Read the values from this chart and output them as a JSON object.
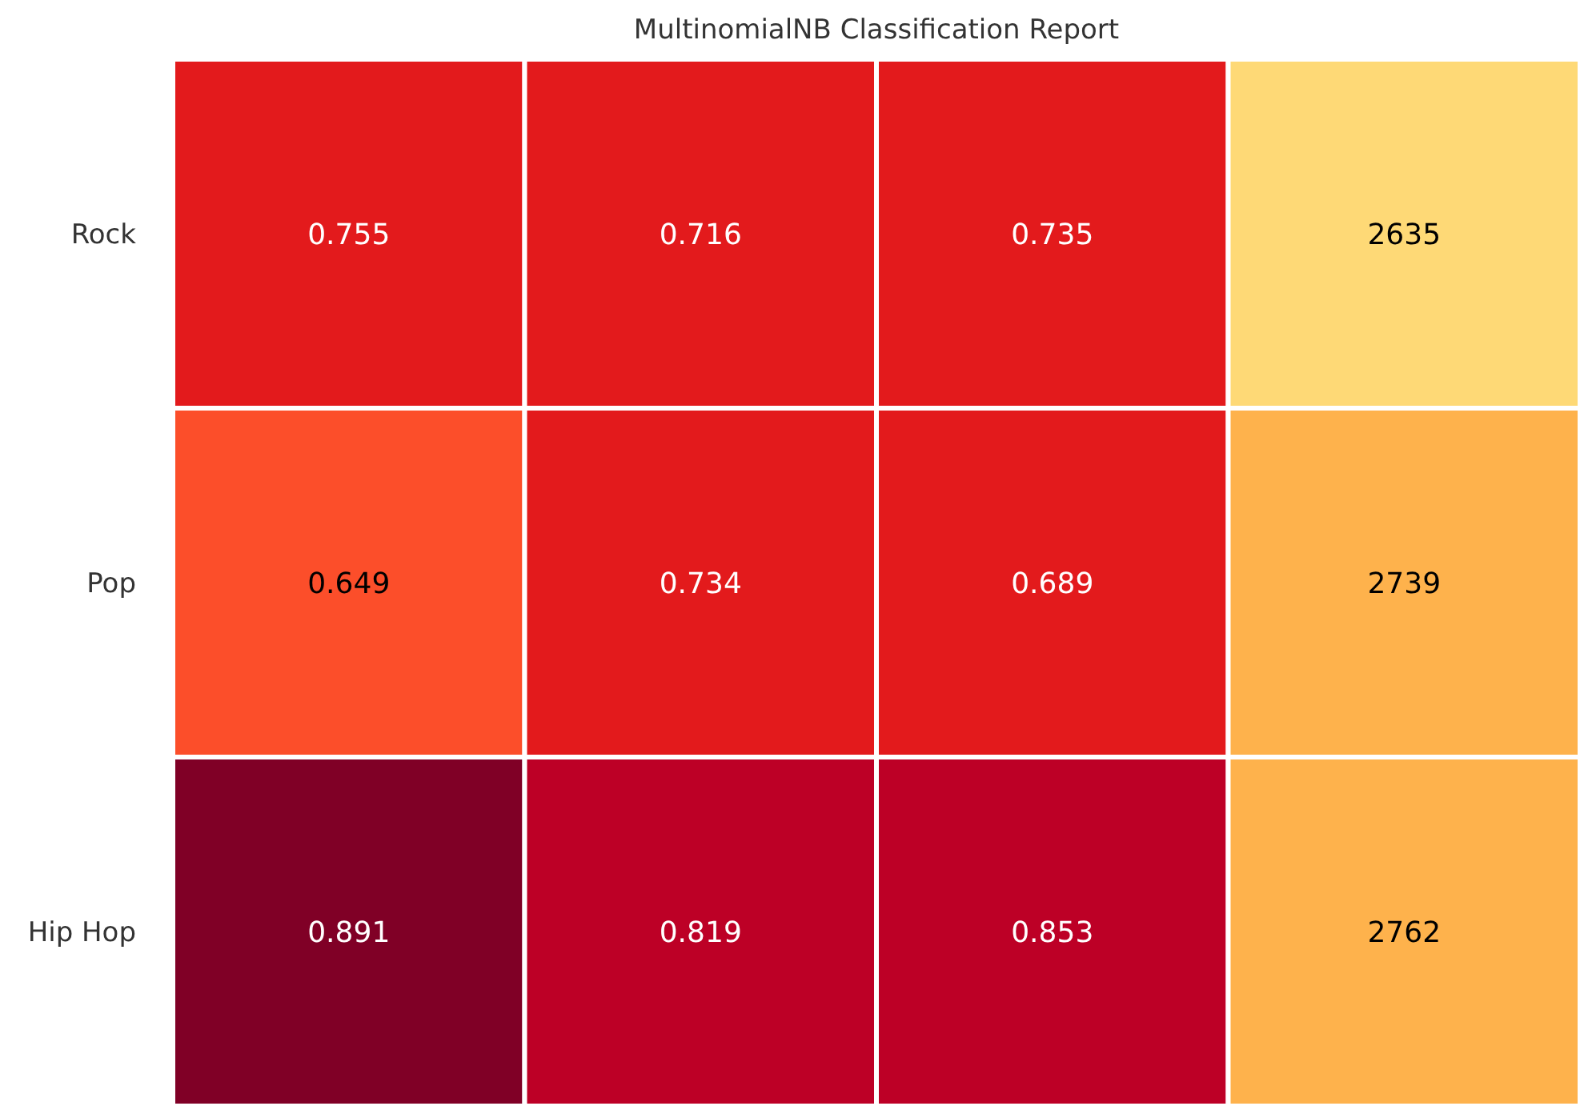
{
  "chart_data": {
    "type": "heatmap",
    "title": "MultinomialNB Classification Report",
    "categories": [
      null,
      null,
      null,
      null
    ],
    "y_categories": [
      "Rock",
      "Pop",
      "Hip Hop"
    ],
    "cells": [
      [
        0.755,
        0.716,
        0.735,
        2635
      ],
      [
        0.649,
        0.734,
        0.689,
        2739
      ],
      [
        0.891,
        0.819,
        0.853,
        2762
      ]
    ],
    "colors": [
      [
        "#e31a1c",
        "#e31a1c",
        "#e31a1c",
        "#fed976"
      ],
      [
        "#fc4e2a",
        "#e31a1c",
        "#e31a1c",
        "#feb24c"
      ],
      [
        "#800026",
        "#bd0026",
        "#bd0026",
        "#feb24c"
      ]
    ],
    "data_labels": true
  }
}
